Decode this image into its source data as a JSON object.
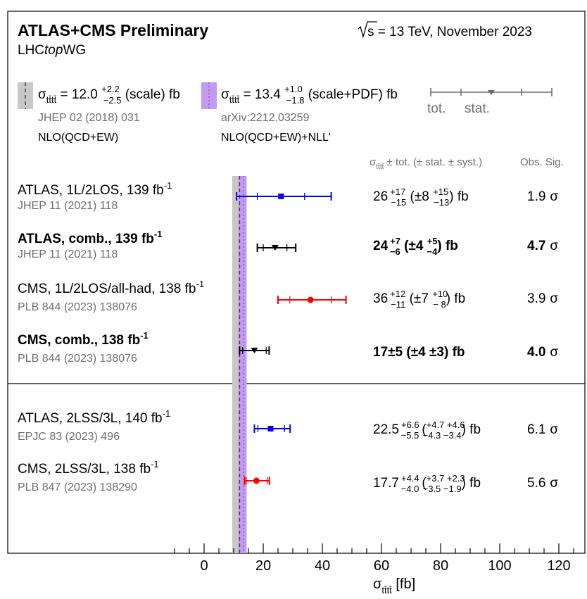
{
  "header": {
    "title": "ATLAS+CMS Preliminary",
    "group_prefix": "LHC",
    "group_italic": "top",
    "group_suffix": "WG",
    "energy_sym": "s",
    "energy_text": " = 13 TeV, November 2023"
  },
  "predictions": [
    {
      "sigma": "σ",
      "sub": "tt̄tt̄",
      "value": " = 12.0 ",
      "err_up": "+2.2",
      "err_dn": "−2.5",
      "unit": " (scale) fb",
      "ref": "JHEP 02 (2018) 031",
      "order": "NLO(QCD+EW)",
      "color": "#c8c8c8",
      "center": 12.0,
      "band": [
        9.5,
        14.2
      ]
    },
    {
      "sigma": "σ",
      "sub": "tt̄tt̄",
      "value": " = 13.4 ",
      "err_up": "+1.0",
      "err_dn": "−1.8",
      "unit": " (scale+PDF) fb",
      "ref": "arXiv:2212.03259",
      "order": "NLO(QCD+EW)+NLL'",
      "color": "#c39bf0",
      "center": 13.4,
      "band": [
        11.6,
        14.4
      ]
    }
  ],
  "legend": {
    "tot": "tot.",
    "stat": "stat."
  },
  "columns": {
    "sig_sym": "σ",
    "sig_sub": "tt̄tt̄",
    "sig_rest": " ± tot. (± stat. ± syst.)",
    "obs": "Obs. Sig."
  },
  "chart_data": {
    "type": "scatter",
    "xlabel": "σ",
    "xlabel_sub": "tt̄tt̄",
    "xlabel_unit": " [fb]",
    "xlim": [
      -20,
      128
    ],
    "xticks": [
      0,
      20,
      40,
      60,
      80,
      100,
      120
    ],
    "grid": false,
    "measurements": [
      {
        "label": "ATLAS, 1L/2LOS, 139 fb",
        "label_sup": "-1",
        "ref": "JHEP 11 (2021) 118",
        "bold": false,
        "value": 26,
        "tot": [
          -15,
          17
        ],
        "stat": [
          -8,
          8
        ],
        "marker": "square",
        "color": "#0000ff",
        "res_main": "26",
        "res_up": "+17",
        "res_dn": "−15",
        "res_mid": " (±8 ",
        "res_up2": "+15",
        "res_dn2": "−13",
        "res_end": ") fb",
        "obs": "1.9",
        "sigma": "σ"
      },
      {
        "label": "ATLAS, comb., 139 fb",
        "label_sup": "-1",
        "ref": "JHEP 11 (2021) 118",
        "bold": true,
        "value": 24,
        "tot": [
          -6,
          7
        ],
        "stat": [
          -4,
          4
        ],
        "marker": "triangle",
        "color": "#000000",
        "res_main": "24",
        "res_up": "+7",
        "res_dn": "−6",
        "res_mid": " (±4 ",
        "res_up2": "+5",
        "res_dn2": "−4",
        "res_end": ") fb",
        "obs": "4.7",
        "sigma": "σ"
      },
      {
        "label": "CMS, 1L/2LOS/all-had, 138 fb",
        "label_sup": "-1",
        "ref": "PLB 844 (2023) 138076",
        "bold": false,
        "value": 36,
        "tot": [
          -11,
          12
        ],
        "stat": [
          -7,
          7
        ],
        "marker": "circle",
        "color": "#ff0000",
        "res_main": "36",
        "res_up": "+12",
        "res_dn": "−11",
        "res_mid": " (±7 ",
        "res_up2": "+10",
        "res_dn2": "− 8",
        "res_end": ") fb",
        "obs": "3.9",
        "sigma": "σ"
      },
      {
        "label": "CMS, comb., 138 fb",
        "label_sup": "-1",
        "ref": "PLB 844 (2023) 138076",
        "bold": true,
        "value": 17,
        "tot": [
          -5,
          5
        ],
        "stat": [
          -4,
          4
        ],
        "marker": "triangle",
        "color": "#000000",
        "res_text": "17±5 (±4 ±3) fb",
        "obs": "4.0",
        "sigma": "σ"
      },
      {
        "label": "ATLAS, 2LSS/3L, 140 fb",
        "label_sup": "-1",
        "ref": "EPJC 83 (2023) 496",
        "bold": false,
        "value": 22.5,
        "tot": [
          -5.5,
          6.6
        ],
        "stat": [
          -4.3,
          4.7
        ],
        "marker": "square",
        "color": "#0000ff",
        "res_main": "22.5",
        "res_up": "+6.6",
        "res_dn": "−5.5",
        "res_up2": "+4.7 +4.6",
        "res_dn2": "−4.3 −3.4",
        "res_end": " fb",
        "obs": "6.1",
        "sigma": "σ"
      },
      {
        "label": "CMS, 2LSS/3L, 138 fb",
        "label_sup": "-1",
        "ref": "PLB 847 (2023) 138290",
        "bold": false,
        "value": 17.7,
        "tot": [
          -4.0,
          4.4
        ],
        "stat": [
          -3.5,
          3.7
        ],
        "marker": "circle",
        "color": "#ff0000",
        "res_main": "17.7",
        "res_up": "+4.4",
        "res_dn": "−4.0",
        "res_up2": "+3.7 +2.3",
        "res_dn2": "−3.5 −1.9",
        "res_end": " fb",
        "obs": "5.6",
        "sigma": "σ"
      }
    ]
  }
}
